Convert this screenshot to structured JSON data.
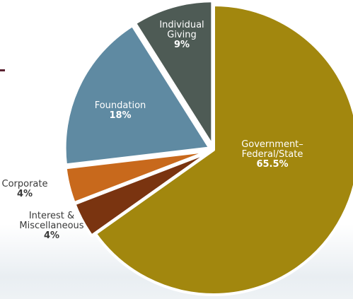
{
  "chart_data": {
    "type": "pie",
    "unit": "%",
    "slices": [
      {
        "label_lines": [
          "Government–",
          "Federal/State"
        ],
        "value": 65.5,
        "value_label": "65.5%",
        "color": "#a2870e",
        "label_color": "#ffffff",
        "label_pos": "inside"
      },
      {
        "label_lines": [
          "Interest &",
          "Miscellaneous"
        ],
        "value": 4,
        "value_label": "4%",
        "color": "#7a3410",
        "label_color": "#3a3a3a",
        "label_pos": "outside-left"
      },
      {
        "label_lines": [
          "Corporate"
        ],
        "value": 4,
        "value_label": "4%",
        "color": "#c8691c",
        "label_color": "#3a3a3a",
        "label_pos": "outside-left"
      },
      {
        "label_lines": [
          "Foundation"
        ],
        "value": 18,
        "value_label": "18%",
        "color": "#5f8aa2",
        "label_color": "#ffffff",
        "label_pos": "inside"
      },
      {
        "label_lines": [
          "Individual",
          "Giving"
        ],
        "value": 9,
        "value_label": "9%",
        "color": "#4e5b55",
        "label_color": "#ffffff",
        "label_pos": "inside"
      }
    ]
  }
}
